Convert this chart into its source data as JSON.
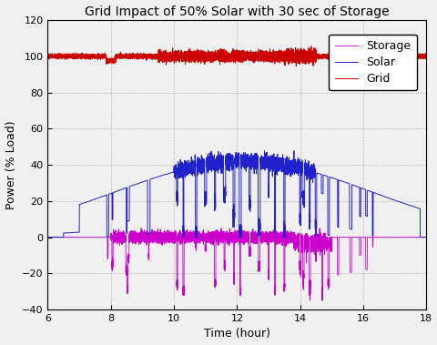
{
  "title": "Grid Impact of 50% Solar with 30 sec of Storage",
  "xlabel": "Time (hour)",
  "ylabel": "Power (% Load)",
  "xlim": [
    6,
    18
  ],
  "ylim": [
    -40,
    120
  ],
  "xticks": [
    6,
    8,
    10,
    12,
    14,
    16,
    18
  ],
  "yticks": [
    -40,
    -20,
    0,
    20,
    40,
    60,
    80,
    100,
    120
  ],
  "grid_color": "#aaaaaa",
  "bg_color": "#f0f0f0",
  "axes_bg_color": "#f0f0f0",
  "grid_linestyle": ":",
  "legend_labels": [
    "Grid",
    "Solar",
    "Storage"
  ],
  "line_colors": {
    "grid": "#cc0000",
    "solar": "#2222cc",
    "storage": "#cc00cc"
  },
  "title_fontsize": 10,
  "axis_fontsize": 9,
  "tick_fontsize": 8,
  "legend_fontsize": 9,
  "seed": 42
}
